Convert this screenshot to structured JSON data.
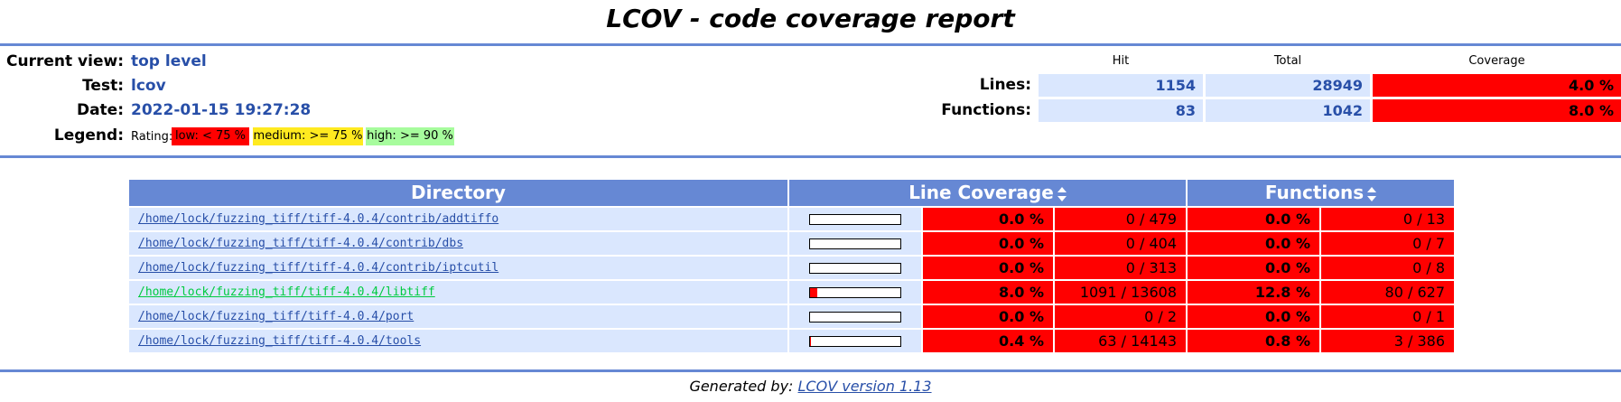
{
  "title": "LCOV - code coverage report",
  "info": {
    "current_view_label": "Current view:",
    "current_view": "top level",
    "test_label": "Test:",
    "test": "lcov",
    "date_label": "Date:",
    "date": "2022-01-15 19:27:28",
    "legend_label": "Legend:",
    "rating_label": "Rating:",
    "legend_low": "low: < 75 %",
    "legend_medium": "medium: >= 75 %",
    "legend_high": "high: >= 90 %"
  },
  "summary": {
    "hit_label": "Hit",
    "total_label": "Total",
    "coverage_label": "Coverage",
    "lines_label": "Lines:",
    "lines_hit": "1154",
    "lines_total": "28949",
    "lines_cov": "4.0 %",
    "functions_label": "Functions:",
    "functions_hit": "83",
    "functions_total": "1042",
    "functions_cov": "8.0 %"
  },
  "table": {
    "h_directory": "Directory",
    "h_line": "Line Coverage",
    "h_functions": "Functions",
    "rows": [
      {
        "dir": "/home/lock/fuzzing_tiff/tiff-4.0.4/contrib/addtiffo",
        "line_pct": "0.0 %",
        "line_cnt": "0 / 479",
        "fn_pct": "0.0 %",
        "fn_cnt": "0 / 13",
        "bar": 0.0
      },
      {
        "dir": "/home/lock/fuzzing_tiff/tiff-4.0.4/contrib/dbs",
        "line_pct": "0.0 %",
        "line_cnt": "0 / 404",
        "fn_pct": "0.0 %",
        "fn_cnt": "0 / 7",
        "bar": 0.0
      },
      {
        "dir": "/home/lock/fuzzing_tiff/tiff-4.0.4/contrib/iptcutil",
        "line_pct": "0.0 %",
        "line_cnt": "0 / 313",
        "fn_pct": "0.0 %",
        "fn_cnt": "0 / 8",
        "bar": 0.0
      },
      {
        "dir": "/home/lock/fuzzing_tiff/tiff-4.0.4/libtiff",
        "line_pct": "8.0 %",
        "line_cnt": "1091 / 13608",
        "fn_pct": "12.8 %",
        "fn_cnt": "80 / 627",
        "bar": 8.0
      },
      {
        "dir": "/home/lock/fuzzing_tiff/tiff-4.0.4/port",
        "line_pct": "0.0 %",
        "line_cnt": "0 / 2",
        "fn_pct": "0.0 %",
        "fn_cnt": "0 / 1",
        "bar": 0.0
      },
      {
        "dir": "/home/lock/fuzzing_tiff/tiff-4.0.4/tools",
        "line_pct": "0.4 %",
        "line_cnt": "63 / 14143",
        "fn_pct": "0.8 %",
        "fn_cnt": "3 / 386",
        "bar": 0.4
      }
    ]
  },
  "footer": {
    "prefix": "Generated by:",
    "link": "LCOV version 1.13"
  },
  "colors": {
    "header_blue": "#6688d4",
    "row_bg": "#dae7fe",
    "low": "#ff0000",
    "medium": "#ffea20",
    "high": "#a7fc9d",
    "link": "#284fa8",
    "visited_link": "#00cb40"
  }
}
